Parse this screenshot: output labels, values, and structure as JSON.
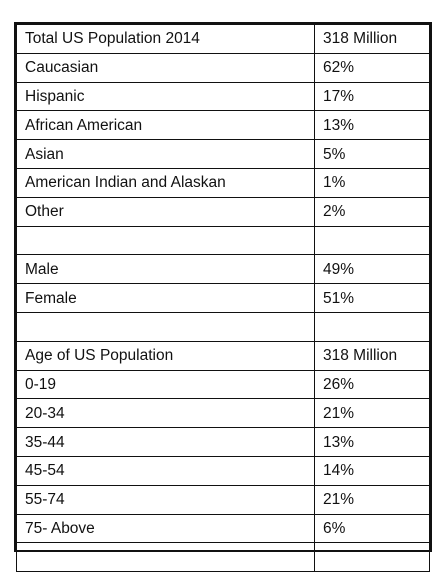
{
  "table": {
    "rows": [
      {
        "label": "Total US Population 2014",
        "value": "318 Million"
      },
      {
        "label": "Caucasian",
        "value": "62%"
      },
      {
        "label": "Hispanic",
        "value": "17%"
      },
      {
        "label": "African American",
        "value": "13%"
      },
      {
        "label": "Asian",
        "value": "5%"
      },
      {
        "label": "American Indian and Alaskan",
        "value": "1%"
      },
      {
        "label": "Other",
        "value": "2%"
      },
      {
        "label": "",
        "value": ""
      },
      {
        "label": "Male",
        "value": "49%"
      },
      {
        "label": "Female",
        "value": "51%"
      },
      {
        "label": "",
        "value": ""
      },
      {
        "label": "Age of US Population",
        "value": "318 Million"
      },
      {
        "label": "0-19",
        "value": "26%"
      },
      {
        "label": "20-34",
        "value": "21%"
      },
      {
        "label": "35-44",
        "value": "13%"
      },
      {
        "label": "45-54",
        "value": "14%"
      },
      {
        "label": "55-74",
        "value": "21%"
      },
      {
        "label": "75- Above",
        "value": "6%"
      },
      {
        "label": "",
        "value": ""
      }
    ]
  }
}
